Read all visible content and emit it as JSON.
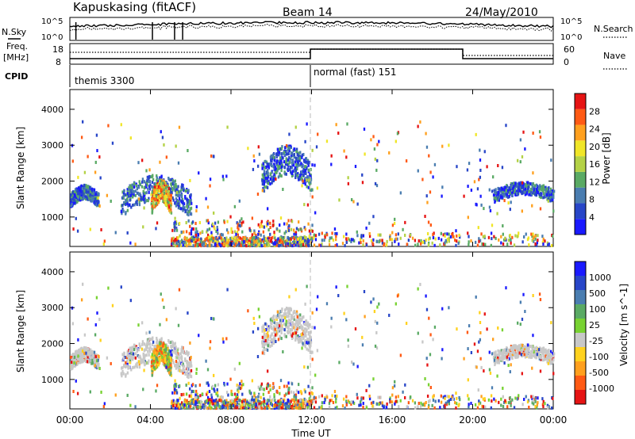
{
  "header": {
    "station": "Kapuskasing (fitACF)",
    "beam": "Beam 14",
    "date": "24/May/2010"
  },
  "top_panel": {
    "left_label": "N.Sky",
    "right_label": "N.Search",
    "left_ticks": [
      "10^5",
      "10^0"
    ],
    "right_ticks": [
      "10^5",
      "10^0"
    ]
  },
  "freq_panel": {
    "left_label_1": "Freq.",
    "left_label_2": "[MHz]",
    "right_label": "Nave",
    "left_ticks": [
      "18",
      "8"
    ],
    "right_ticks": [
      "60",
      "0"
    ]
  },
  "cpid_panel": {
    "label": "CPID",
    "segments": [
      {
        "label": "themis 3300",
        "start": "00:00",
        "end": "12:00"
      },
      {
        "label": "normal (fast) 151",
        "start": "12:00",
        "end": "24:00"
      }
    ]
  },
  "chart_data": [
    {
      "type": "heatmap",
      "title": "",
      "ylabel": "Slant Range [km]",
      "xlabel": "",
      "x_ticks": [
        "00:00",
        "04:00",
        "08:00",
        "12:00",
        "16:00",
        "20:00",
        "00:00"
      ],
      "y_ticks": [
        1000,
        2000,
        3000,
        4000
      ],
      "ylim": [
        180,
        4550
      ],
      "xlim_hours": [
        0,
        24
      ],
      "colorbar": {
        "label": "Power [dB]",
        "ticks": [
          "4",
          "8",
          "12",
          "16",
          "20",
          "24",
          "28"
        ],
        "colors": [
          "#1a1aff",
          "#2846c8",
          "#4a7db0",
          "#5aaa64",
          "#b4d246",
          "#f0e628",
          "#ffa01e",
          "#ff5a14",
          "#e61414"
        ]
      },
      "echo_regions": [
        {
          "t0": 0.0,
          "t1": 1.4,
          "r0": 1100,
          "r1": 1800,
          "note": "band"
        },
        {
          "t0": 2.5,
          "t1": 6.0,
          "r0": 700,
          "r1": 2000,
          "note": "band"
        },
        {
          "t0": 4.0,
          "t1": 5.0,
          "r0": 800,
          "r1": 1900,
          "note": "strong"
        },
        {
          "t0": 9.5,
          "t1": 12.0,
          "r0": 1300,
          "r1": 2800,
          "note": "band"
        },
        {
          "t0": 21.0,
          "t1": 24.0,
          "r0": 1250,
          "r1": 1900,
          "note": "band"
        },
        {
          "t0": 5.0,
          "t1": 12.0,
          "r0": 180,
          "r1": 900,
          "note": "near-range"
        }
      ]
    },
    {
      "type": "heatmap",
      "title": "",
      "ylabel": "Slant Range [km]",
      "xlabel": "Time UT",
      "x_ticks": [
        "00:00",
        "04:00",
        "08:00",
        "12:00",
        "16:00",
        "20:00",
        "00:00"
      ],
      "y_ticks": [
        1000,
        2000,
        3000,
        4000
      ],
      "ylim": [
        180,
        4550
      ],
      "xlim_hours": [
        0,
        24
      ],
      "colorbar": {
        "label": "Velocity [m s^-1]",
        "ticks": [
          "1000",
          "500",
          "100",
          "25",
          "-25",
          "-100",
          "-500",
          "-1000"
        ],
        "colors": [
          "#1a1aff",
          "#2846c8",
          "#4a7db0",
          "#5aaa64",
          "#78d232",
          "#c8c8c8",
          "#ffd21e",
          "#ffa01e",
          "#ff5a14",
          "#e61414"
        ]
      },
      "ground_scatter_color": "#c8c8c8"
    }
  ]
}
